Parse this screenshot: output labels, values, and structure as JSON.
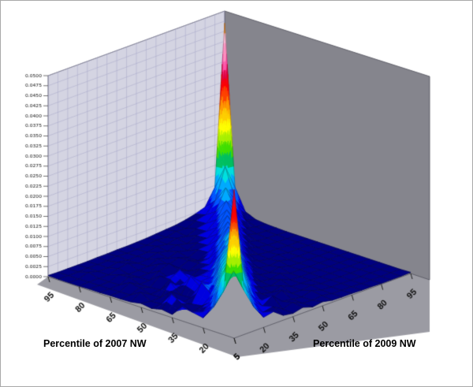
{
  "chart_data": {
    "type": "surface",
    "title": "",
    "x_axis": {
      "title": "Percentile of 2009 NW",
      "tick_labels": [
        "5",
        "20",
        "35",
        "50",
        "65",
        "80",
        "95"
      ]
    },
    "y_axis": {
      "title": "Percentile of 2007 NW",
      "tick_labels": [
        "95",
        "80",
        "65",
        "50",
        "35",
        "20",
        "5"
      ]
    },
    "z_axis": {
      "max": 0.05,
      "band_width": 0.0025,
      "tick_labels": [
        "0.0000",
        "0.0025",
        "0.0050",
        "0.0075",
        "0.0100",
        "0.0125",
        "0.0150",
        "0.0175",
        "0.0200",
        "0.0225",
        "0.0250",
        "0.0275",
        "0.0300",
        "0.0325",
        "0.0350",
        "0.0375",
        "0.0400",
        "0.0425",
        "0.0450",
        "0.0475",
        "0.0500"
      ]
    },
    "grid_percentiles": [
      5,
      10,
      15,
      20,
      25,
      30,
      35,
      40,
      45,
      50,
      55,
      60,
      65,
      70,
      75,
      80,
      85,
      90,
      95
    ],
    "values_scale": 0.0001,
    "values": [
      [
        370,
        110,
        60,
        25,
        30,
        12,
        8,
        14,
        6,
        10,
        5,
        4,
        4,
        3,
        3,
        2,
        2,
        2,
        3
      ],
      [
        110,
        150,
        110,
        45,
        20,
        25,
        10,
        18,
        7,
        5,
        8,
        4,
        3,
        3,
        2,
        2,
        2,
        2,
        2
      ],
      [
        60,
        90,
        170,
        100,
        40,
        18,
        35,
        12,
        8,
        5,
        12,
        4,
        3,
        3,
        2,
        2,
        2,
        2,
        2
      ],
      [
        25,
        45,
        120,
        150,
        110,
        35,
        15,
        10,
        22,
        6,
        4,
        8,
        3,
        3,
        2,
        2,
        2,
        2,
        2
      ],
      [
        30,
        22,
        40,
        110,
        140,
        100,
        30,
        14,
        8,
        16,
        5,
        4,
        3,
        2,
        2,
        2,
        2,
        2,
        2
      ],
      [
        35,
        14,
        20,
        38,
        100,
        130,
        85,
        28,
        12,
        7,
        14,
        4,
        3,
        3,
        2,
        2,
        2,
        2,
        2
      ],
      [
        8,
        25,
        16,
        60,
        35,
        90,
        120,
        80,
        25,
        10,
        6,
        12,
        3,
        3,
        2,
        2,
        2,
        2,
        2
      ],
      [
        12,
        40,
        10,
        14,
        30,
        32,
        80,
        110,
        75,
        22,
        9,
        5,
        10,
        3,
        2,
        2,
        2,
        2,
        2
      ],
      [
        6,
        8,
        30,
        12,
        50,
        28,
        30,
        70,
        100,
        70,
        20,
        8,
        5,
        8,
        2,
        2,
        2,
        2,
        2
      ],
      [
        10,
        6,
        7,
        35,
        12,
        25,
        26,
        28,
        60,
        95,
        60,
        18,
        8,
        4,
        6,
        2,
        2,
        2,
        2
      ],
      [
        5,
        20,
        6,
        8,
        25,
        40,
        12,
        24,
        26,
        55,
        90,
        55,
        16,
        7,
        4,
        3,
        2,
        2,
        2
      ],
      [
        4,
        5,
        14,
        6,
        25,
        10,
        22,
        11,
        22,
        24,
        50,
        85,
        50,
        15,
        7,
        4,
        3,
        2,
        2
      ],
      [
        4,
        4,
        18,
        5,
        6,
        20,
        30,
        10,
        20,
        10,
        22,
        45,
        80,
        45,
        14,
        6,
        4,
        3,
        2
      ],
      [
        3,
        3,
        4,
        15,
        5,
        6,
        20,
        9,
        18,
        9,
        20,
        22,
        42,
        78,
        42,
        13,
        6,
        4,
        3
      ],
      [
        3,
        3,
        3,
        12,
        4,
        5,
        6,
        16,
        8,
        16,
        9,
        20,
        22,
        40,
        75,
        40,
        12,
        6,
        4
      ],
      [
        2,
        3,
        3,
        3,
        10,
        14,
        5,
        6,
        14,
        8,
        15,
        9,
        20,
        22,
        42,
        80,
        45,
        14,
        7
      ],
      [
        2,
        2,
        10,
        3,
        3,
        8,
        4,
        5,
        6,
        12,
        8,
        14,
        10,
        20,
        24,
        45,
        95,
        55,
        18
      ],
      [
        2,
        2,
        2,
        3,
        3,
        3,
        6,
        4,
        5,
        6,
        10,
        8,
        14,
        12,
        22,
        28,
        55,
        130,
        70
      ],
      [
        3,
        2,
        2,
        2,
        2,
        3,
        3,
        4,
        4,
        5,
        6,
        8,
        10,
        12,
        16,
        22,
        30,
        70,
        470
      ]
    ],
    "band_colors": [
      "#000080",
      "#0000e0",
      "#0055ff",
      "#00aaff",
      "#00e0e0",
      "#00c060",
      "#40e000",
      "#a8f000",
      "#ffff00",
      "#ffd000",
      "#ff9900",
      "#ff4400",
      "#ff0000",
      "#e00040",
      "#ff4da6",
      "#ff8fc0",
      "#ffbcd9",
      "#ff9933",
      "#ddccf5",
      "#f0e8fa"
    ],
    "colors": {
      "left_wall": "#d4d4e2",
      "left_wall_grid": "#a6a6c8",
      "right_wall": "#85858d",
      "floor": "#9c9ca4",
      "margin": "#9b9ba3",
      "wall_edge": "#4a4a55",
      "mesh_line": "rgba(20,20,20,0.6)",
      "label": "#111111"
    }
  }
}
